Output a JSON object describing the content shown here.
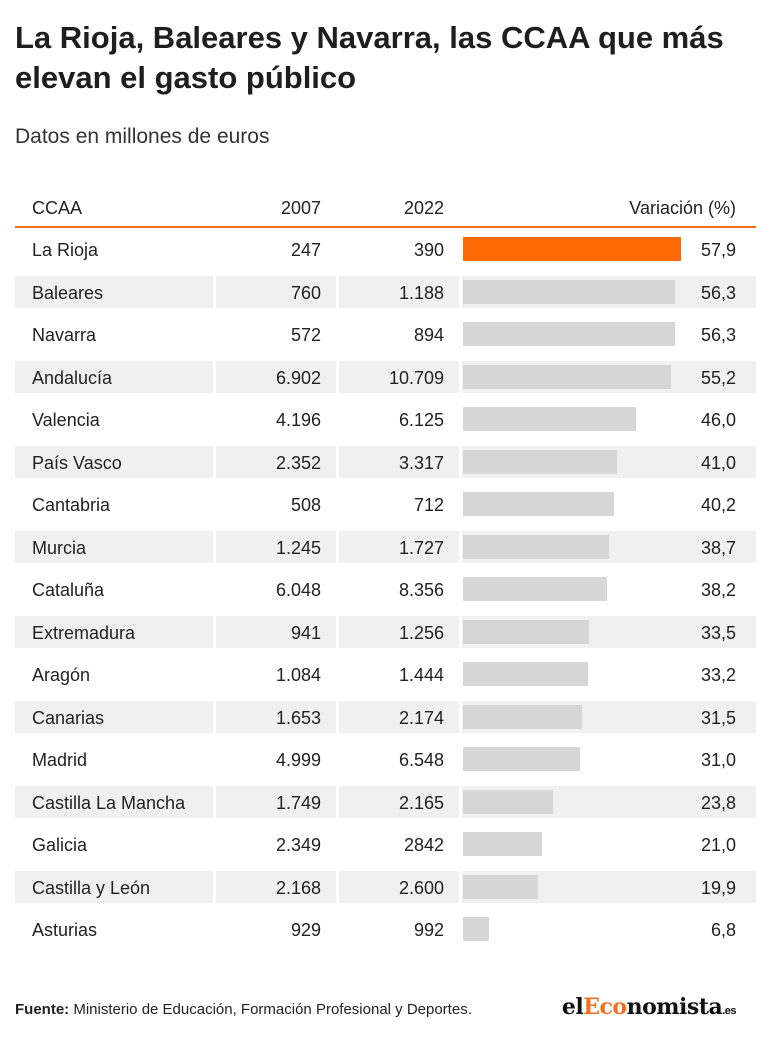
{
  "header": {
    "title": "La Rioja, Baleares y Navarra, las CCAA que más elevan el gasto público",
    "subtitle": "Datos en millones de euros"
  },
  "table": {
    "columns": [
      "CCAA",
      "2007",
      "2022",
      "Variación (%)"
    ]
  },
  "chart_data": {
    "type": "table",
    "title": "La Rioja, Baleares y Navarra, las CCAA que más elevan el gasto público",
    "subtitle": "Datos en millones de euros",
    "columns": [
      "CCAA",
      "2007",
      "2022",
      "Variación (%)"
    ],
    "highlight_color": "#ff6a06",
    "bar_color": "#d6d6d6",
    "accent_color": "#f07020",
    "rows": [
      {
        "ccaa": "La Rioja",
        "y2007": "247",
        "y2022": "390",
        "var_label": "57,9",
        "var": 57.9,
        "highlight": true
      },
      {
        "ccaa": "Baleares",
        "y2007": "760",
        "y2022": "1.188",
        "var_label": "56,3",
        "var": 56.3
      },
      {
        "ccaa": "Navarra",
        "y2007": "572",
        "y2022": "894",
        "var_label": "56,3",
        "var": 56.3
      },
      {
        "ccaa": "Andalucía",
        "y2007": "6.902",
        "y2022": "10.709",
        "var_label": "55,2",
        "var": 55.2
      },
      {
        "ccaa": "Valencia",
        "y2007": "4.196",
        "y2022": "6.125",
        "var_label": "46,0",
        "var": 46.0
      },
      {
        "ccaa": "País Vasco",
        "y2007": "2.352",
        "y2022": "3.317",
        "var_label": "41,0",
        "var": 41.0
      },
      {
        "ccaa": "Cantabria",
        "y2007": "508",
        "y2022": "712",
        "var_label": "40,2",
        "var": 40.2
      },
      {
        "ccaa": "Murcia",
        "y2007": "1.245",
        "y2022": "1.727",
        "var_label": "38,7",
        "var": 38.7
      },
      {
        "ccaa": "Cataluña",
        "y2007": "6.048",
        "y2022": "8.356",
        "var_label": "38,2",
        "var": 38.2
      },
      {
        "ccaa": "Extremadura",
        "y2007": "941",
        "y2022": "1.256",
        "var_label": "33,5",
        "var": 33.5
      },
      {
        "ccaa": "Aragón",
        "y2007": "1.084",
        "y2022": "1.444",
        "var_label": "33,2",
        "var": 33.2
      },
      {
        "ccaa": "Canarias",
        "y2007": "1.653",
        "y2022": "2.174",
        "var_label": "31,5",
        "var": 31.5
      },
      {
        "ccaa": "Madrid",
        "y2007": "4.999",
        "y2022": "6.548",
        "var_label": "31,0",
        "var": 31.0
      },
      {
        "ccaa": "Castilla La Mancha",
        "y2007": "1.749",
        "y2022": "2.165",
        "var_label": "23,8",
        "var": 23.8
      },
      {
        "ccaa": "Galicia",
        "y2007": "2.349",
        "y2022": "2842",
        "var_label": "21,0",
        "var": 21.0
      },
      {
        "ccaa": "Castilla y León",
        "y2007": "2.168",
        "y2022": "2.600",
        "var_label": "19,9",
        "var": 19.9
      },
      {
        "ccaa": "Asturias",
        "y2007": "929",
        "y2022": "992",
        "var_label": "6,8",
        "var": 6.8
      }
    ]
  },
  "footer": {
    "source_label": "Fuente:",
    "source_text": " Ministerio de Educación, Formación Profesional y Deportes."
  },
  "logo": {
    "part1": "el",
    "part2": "Eco",
    "part3": "nomista",
    "tld": ".es"
  }
}
